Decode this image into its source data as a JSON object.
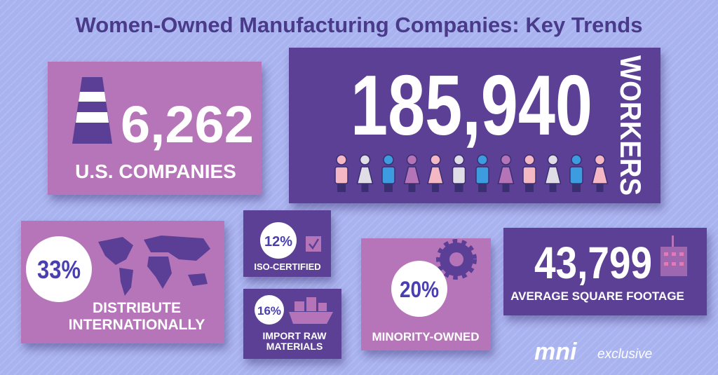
{
  "title": "Women-Owned Manufacturing Companies: Key Trends",
  "companies": {
    "value": "6,262",
    "label": "U.S. COMPANIES"
  },
  "workers": {
    "value": "185,940",
    "label": "WORKERS"
  },
  "international": {
    "value": "33%",
    "label": [
      "DISTRIBUTE",
      "INTERNATIONALLY"
    ]
  },
  "iso": {
    "value": "12%",
    "label": "ISO-CERTIFIED"
  },
  "import": {
    "value": "16%",
    "label": [
      "IMPORT RAW",
      "MATERIALS"
    ]
  },
  "minority": {
    "value": "20%",
    "label": "MINORITY-OWNED"
  },
  "footage": {
    "value": "43,799",
    "label": "AVERAGE SQUARE FOOTAGE"
  },
  "logo": {
    "brand": "mni",
    "tag": "exclusive"
  }
}
